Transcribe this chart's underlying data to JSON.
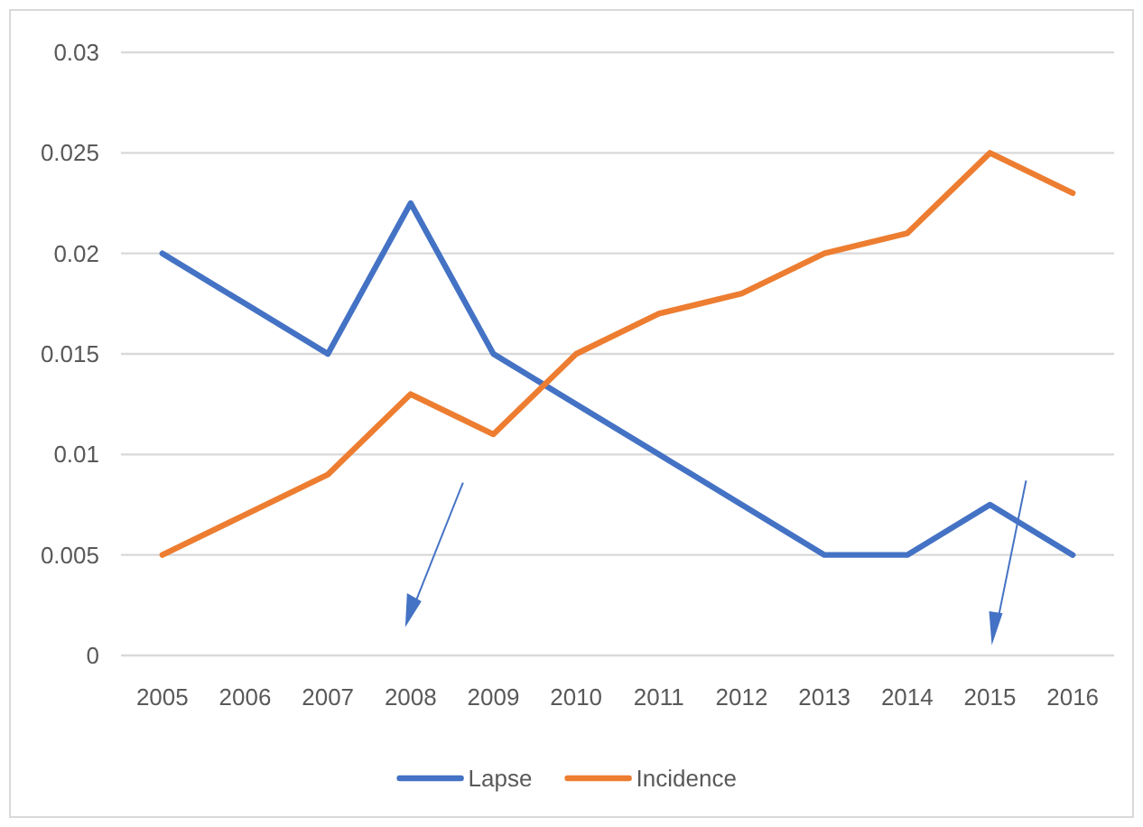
{
  "chart_data": {
    "type": "line",
    "categories": [
      "2005",
      "2006",
      "2007",
      "2008",
      "2009",
      "2010",
      "2011",
      "2012",
      "2013",
      "2014",
      "2015",
      "2016"
    ],
    "series": [
      {
        "name": "Lapse",
        "color": "#4472c4",
        "values": [
          0.02,
          0.0175,
          0.015,
          0.0225,
          0.015,
          0.0125,
          0.01,
          0.0075,
          0.005,
          0.005,
          0.0075,
          0.005
        ]
      },
      {
        "name": "Incidence",
        "color": "#ed7d31",
        "values": [
          0.005,
          0.007,
          0.009,
          0.013,
          0.011,
          0.015,
          0.017,
          0.018,
          0.02,
          0.021,
          0.025,
          0.023
        ]
      }
    ],
    "ylim": [
      0,
      0.03
    ],
    "yticks": [
      0,
      0.005,
      0.01,
      0.015,
      0.02,
      0.025,
      0.03
    ],
    "grid": "y",
    "legend": "bottom",
    "marker": "none",
    "line_style": "solid"
  }
}
